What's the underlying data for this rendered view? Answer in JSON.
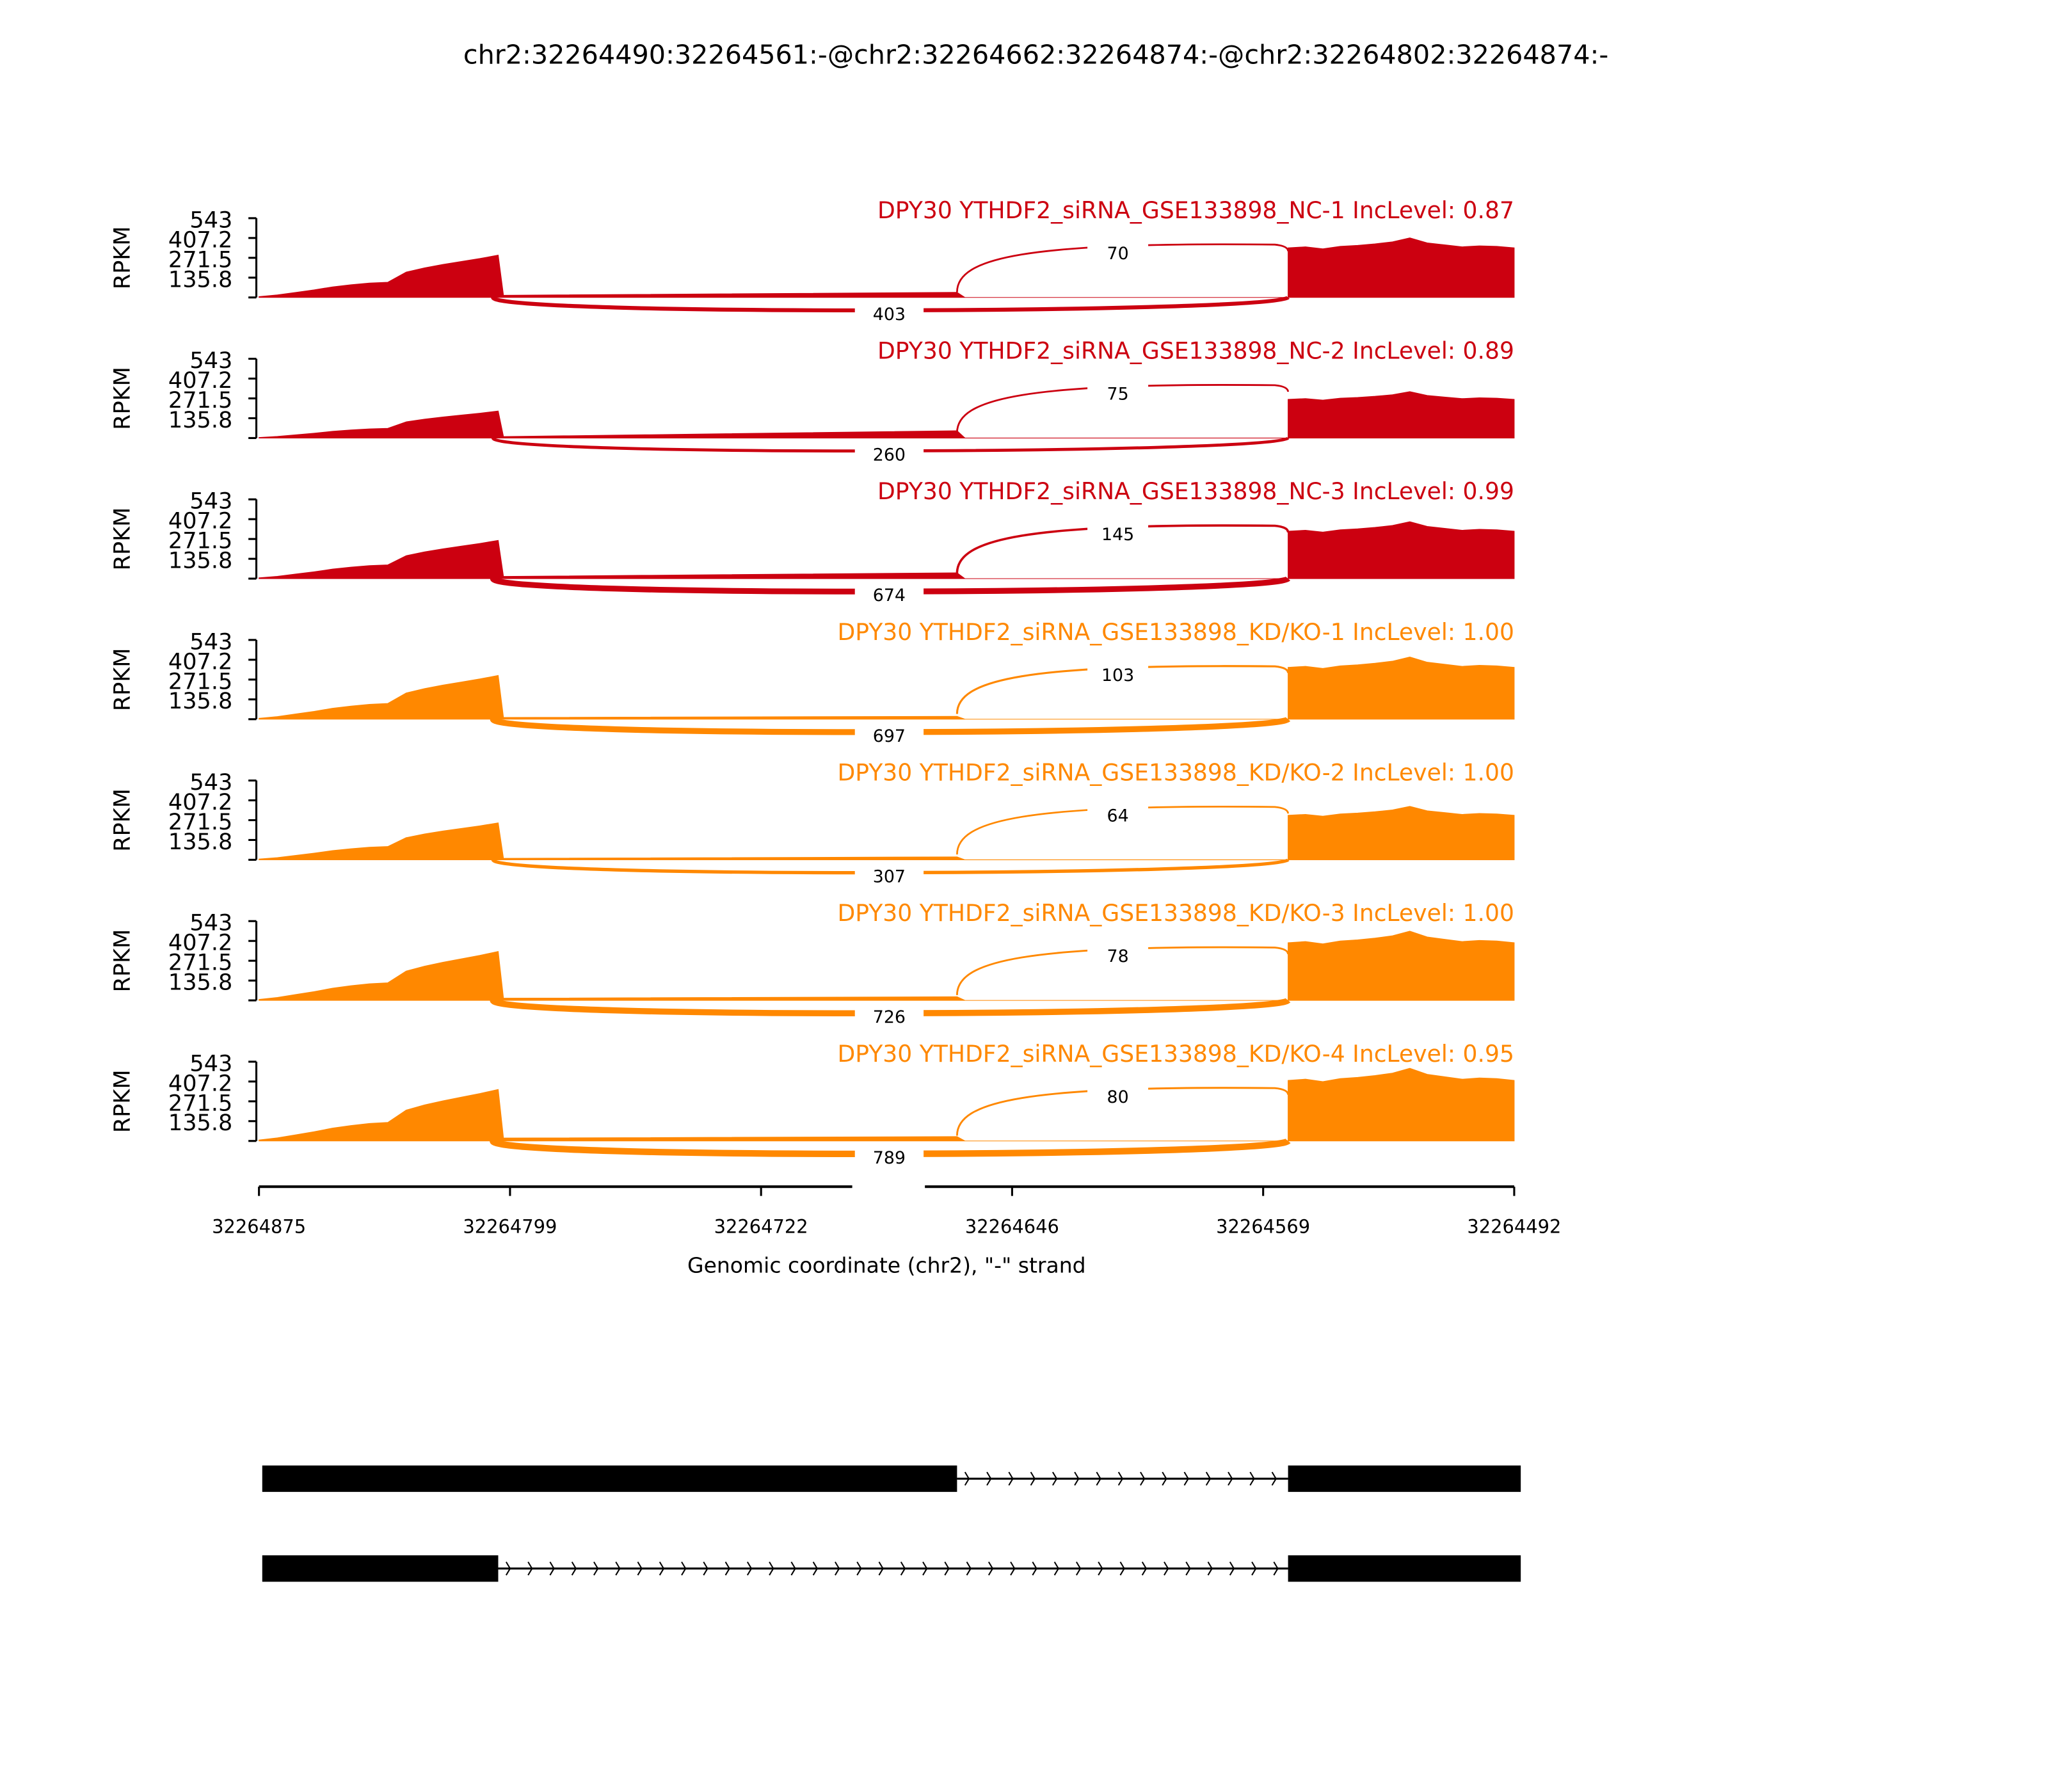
{
  "chart_data": {
    "type": "area",
    "title": "chr2:32264490:32264561:-@chr2:32264662:32264874:-@chr2:32264802:32264874:-",
    "xlabel": "Genomic coordinate (chr2), \"-\" strand",
    "ylabel": "RPKM",
    "xlim": [
      32264875,
      32264492
    ],
    "x_ticks": [
      "32264875",
      "32264799",
      "32264722",
      "32264646",
      "32264569",
      "32264492"
    ],
    "y_ticks": [
      "135.8",
      "271.5",
      "407.2",
      "543"
    ],
    "ylim": [
      0,
      543
    ],
    "colors": {
      "NC": "#cc0010",
      "KD": "#ff8800"
    },
    "samples": [
      {
        "label": "DPY30 YTHDF2_siRNA_GSE133898_NC-1 IncLevel: 0.87",
        "group": "NC",
        "exon1_end_rpkm": 290,
        "intron_rpkm": [
          15,
          35
        ],
        "exon3_rpkm": 340,
        "inclusion_junction": "70",
        "skipping_junction": "403"
      },
      {
        "label": "DPY30 YTHDF2_siRNA_GSE133898_NC-2 IncLevel: 0.89",
        "group": "NC",
        "exon1_end_rpkm": 185,
        "intron_rpkm": [
          10,
          50
        ],
        "exon3_rpkm": 265,
        "inclusion_junction": "75",
        "skipping_junction": "260"
      },
      {
        "label": "DPY30 YTHDF2_siRNA_GSE133898_NC-3 IncLevel: 0.99",
        "group": "NC",
        "exon1_end_rpkm": 262,
        "intron_rpkm": [
          15,
          40
        ],
        "exon3_rpkm": 325,
        "inclusion_junction": "145",
        "skipping_junction": "674"
      },
      {
        "label": "DPY30 YTHDF2_siRNA_GSE133898_KD/KO-1 IncLevel: 1.00",
        "group": "KD",
        "exon1_end_rpkm": 300,
        "intron_rpkm": [
          12,
          20
        ],
        "exon3_rpkm": 355,
        "inclusion_junction": "103",
        "skipping_junction": "697"
      },
      {
        "label": "DPY30 YTHDF2_siRNA_GSE133898_KD/KO-2 IncLevel: 1.00",
        "group": "KD",
        "exon1_end_rpkm": 253,
        "intron_rpkm": [
          10,
          20
        ],
        "exon3_rpkm": 305,
        "inclusion_junction": "64",
        "skipping_junction": "307"
      },
      {
        "label": "DPY30 YTHDF2_siRNA_GSE133898_KD/KO-3 IncLevel: 1.00",
        "group": "KD",
        "exon1_end_rpkm": 335,
        "intron_rpkm": [
          15,
          25
        ],
        "exon3_rpkm": 395,
        "inclusion_junction": "78",
        "skipping_junction": "726"
      },
      {
        "label": "DPY30 YTHDF2_siRNA_GSE133898_KD/KO-4 IncLevel: 0.95",
        "group": "KD",
        "exon1_end_rpkm": 353,
        "intron_rpkm": [
          20,
          30
        ],
        "exon3_rpkm": 415,
        "inclusion_junction": "80",
        "skipping_junction": "789"
      }
    ],
    "isoforms": [
      {
        "exons": [
          [
            32264662,
            32264874
          ],
          [
            32264490,
            32264561
          ]
        ]
      },
      {
        "exons": [
          [
            32264802,
            32264874
          ],
          [
            32264490,
            32264561
          ]
        ]
      }
    ]
  }
}
